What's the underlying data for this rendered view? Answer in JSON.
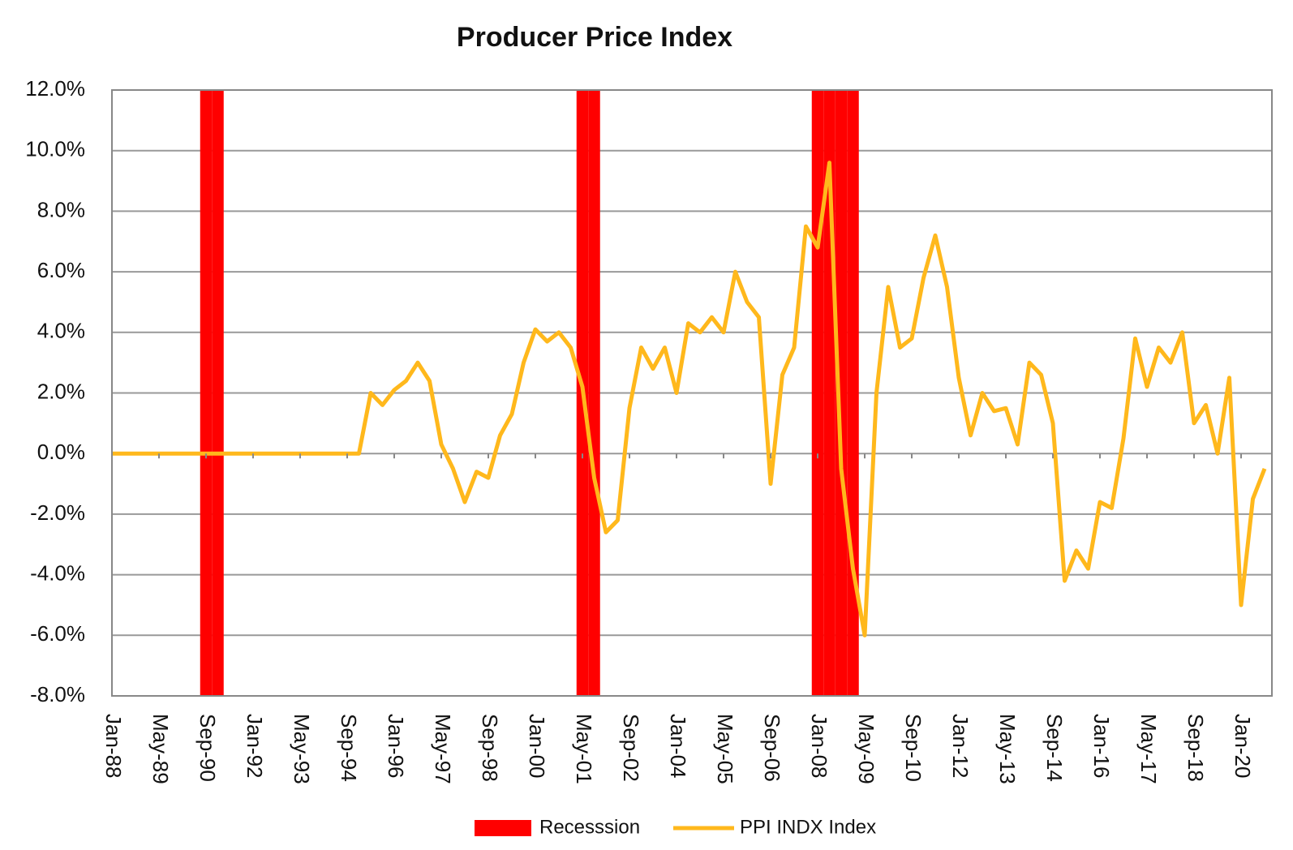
{
  "chart_data": {
    "type": "combo",
    "title": "Producer  Price Index",
    "categories": [
      "Jan-88",
      null,
      null,
      null,
      "May-89",
      null,
      null,
      null,
      "Sep-90",
      null,
      null,
      null,
      "Jan-92",
      null,
      null,
      null,
      "May-93",
      null,
      null,
      null,
      "Sep-94",
      null,
      null,
      null,
      "Jan-96",
      null,
      null,
      null,
      "May-97",
      null,
      null,
      null,
      "Sep-98",
      null,
      null,
      null,
      "Jan-00",
      null,
      null,
      null,
      "May-01",
      null,
      null,
      null,
      "Sep-02",
      null,
      null,
      null,
      "Jan-04",
      null,
      null,
      null,
      "May-05",
      null,
      null,
      null,
      "Sep-06",
      null,
      null,
      null,
      "Jan-08",
      null,
      null,
      null,
      "May-09",
      null,
      null,
      null,
      "Sep-10",
      null,
      null,
      null,
      "Jan-12",
      null,
      null,
      null,
      "May-13",
      null,
      null,
      null,
      "Sep-14",
      null,
      null,
      null,
      "Jan-16",
      null,
      null,
      null,
      "May-17",
      null,
      null,
      null,
      "Sep-18",
      null,
      null,
      null,
      "Jan-20",
      null,
      null
    ],
    "series": [
      {
        "name": "Recesssion",
        "type": "bar",
        "color": "#ff0000",
        "values": [
          null,
          null,
          null,
          null,
          null,
          null,
          null,
          null,
          12,
          12,
          null,
          null,
          null,
          null,
          null,
          null,
          null,
          null,
          null,
          null,
          null,
          null,
          null,
          null,
          null,
          null,
          null,
          null,
          null,
          null,
          null,
          null,
          null,
          null,
          null,
          null,
          null,
          null,
          null,
          null,
          12,
          12,
          null,
          null,
          null,
          null,
          null,
          null,
          null,
          null,
          null,
          null,
          null,
          null,
          null,
          null,
          null,
          null,
          null,
          null,
          12,
          12,
          12,
          12,
          null,
          null,
          null,
          null,
          null,
          null,
          null,
          null,
          null,
          null,
          null,
          null,
          null,
          null,
          null,
          null,
          null,
          null,
          null,
          null,
          null,
          null,
          null,
          null,
          null,
          null,
          null,
          null,
          null,
          null,
          null,
          null,
          null,
          null,
          null
        ]
      },
      {
        "name": "PPI INDX Index",
        "type": "line",
        "color": "#ffb81c",
        "values": [
          0,
          0,
          0,
          0,
          0,
          0,
          0,
          0,
          0,
          0,
          0,
          0,
          0,
          0,
          0,
          0,
          0,
          0,
          0,
          0,
          0,
          0,
          2.0,
          1.6,
          2.1,
          2.4,
          3.0,
          2.4,
          0.3,
          -0.5,
          -1.6,
          -0.6,
          -0.8,
          0.6,
          1.3,
          3.0,
          4.1,
          3.7,
          4.0,
          3.5,
          2.2,
          -0.8,
          -2.6,
          -2.2,
          1.5,
          3.5,
          2.8,
          3.5,
          2.0,
          4.3,
          4.0,
          4.5,
          4.0,
          6.0,
          5.0,
          4.5,
          -1.0,
          2.6,
          3.5,
          7.5,
          6.8,
          9.6,
          -0.5,
          -3.8,
          -6.0,
          2.0,
          5.5,
          3.5,
          3.8,
          5.8,
          7.2,
          5.5,
          2.5,
          0.6,
          2.0,
          1.4,
          1.5,
          0.3,
          3.0,
          2.6,
          1.0,
          -4.2,
          -3.2,
          -3.8,
          -1.6,
          -1.8,
          0.5,
          3.8,
          2.2,
          3.5,
          3.0,
          4.0,
          1.0,
          1.6,
          0.0,
          2.5,
          -5.0,
          -1.5,
          -0.5
        ]
      }
    ],
    "ylim": [
      -8,
      12
    ],
    "yticks": [
      {
        "value": -8,
        "label": "-8.0%"
      },
      {
        "value": -6,
        "label": "-6.0%"
      },
      {
        "value": -4,
        "label": "-4.0%"
      },
      {
        "value": -2,
        "label": "-2.0%"
      },
      {
        "value": 0,
        "label": "0.0%"
      },
      {
        "value": 2,
        "label": "2.0%"
      },
      {
        "value": 4,
        "label": "4.0%"
      },
      {
        "value": 6,
        "label": "6.0%"
      },
      {
        "value": 8,
        "label": "8.0%"
      },
      {
        "value": 10,
        "label": "10.0%"
      },
      {
        "value": 12,
        "label": "12.0%"
      }
    ],
    "grid": true,
    "legend": "bottom"
  }
}
